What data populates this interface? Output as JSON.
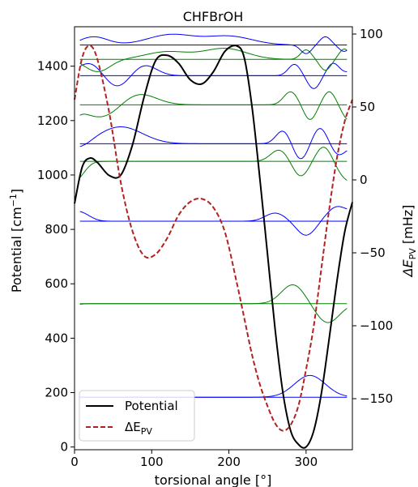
{
  "chart_data": {
    "type": "line",
    "title": "CHFBrOH",
    "xlabel": "torsional angle [°]",
    "ylabel_left": {
      "main": "Potential [cm",
      "sup": "−1",
      "tail": "]"
    },
    "ylabel_right": {
      "main": "ΔE",
      "sub": "PV",
      "tail": " [mHz]"
    },
    "ylabel_right_color": "#b22222",
    "xlim": [
      0,
      360
    ],
    "ylim_left": [
      -10,
      1545
    ],
    "ylim_right": [
      -185,
      105
    ],
    "x_ticks": [
      0,
      100,
      200,
      300
    ],
    "x_tick_labels": [
      "0",
      "100",
      "200",
      "300"
    ],
    "y_left_ticks": [
      0,
      200,
      400,
      600,
      800,
      1000,
      1200,
      1400
    ],
    "y_left_tick_labels": [
      "0",
      "200",
      "400",
      "600",
      "800",
      "1000",
      "1200",
      "1400"
    ],
    "y_right_ticks": [
      -150,
      -100,
      -50,
      0,
      50,
      100
    ],
    "y_right_tick_labels": [
      "−150",
      "−100",
      "−50",
      "0",
      "50",
      "100"
    ],
    "legend": {
      "placement": "lower-left",
      "entries": [
        "Potential",
        "ΔE_PV"
      ]
    },
    "legend_labels": {
      "potential": "Potential",
      "dE_main": "ΔE",
      "dE_sub": "PV"
    },
    "series": [
      {
        "name": "Potential",
        "axis": "left",
        "color": "#000000",
        "style": "solid",
        "x": [
          0,
          10,
          20,
          30,
          45,
          60,
          75,
          90,
          105,
          120,
          135,
          150,
          165,
          180,
          195,
          210,
          220,
          230,
          240,
          250,
          260,
          270,
          280,
          290,
          300,
          310,
          320,
          330,
          340,
          350,
          360
        ],
        "y": [
          895,
          1030,
          1062,
          1045,
          998,
          1000,
          1110,
          1285,
          1420,
          1440,
          1410,
          1350,
          1335,
          1380,
          1455,
          1475,
          1430,
          1250,
          990,
          710,
          430,
          200,
          60,
          10,
          0,
          60,
          200,
          400,
          610,
          790,
          900
        ]
      },
      {
        "name": "ΔE_PV",
        "axis": "right",
        "color": "#b22222",
        "style": "dashed",
        "x": [
          0,
          10,
          20,
          30,
          45,
          60,
          75,
          90,
          105,
          120,
          135,
          150,
          165,
          180,
          195,
          210,
          220,
          230,
          240,
          250,
          260,
          270,
          280,
          290,
          300,
          310,
          320,
          330,
          340,
          350,
          360
        ],
        "y": [
          55,
          84,
          92,
          82,
          46,
          -2,
          -35,
          -52,
          -51,
          -40,
          -24,
          -15,
          -13,
          -19,
          -36,
          -70,
          -95,
          -120,
          -140,
          -155,
          -167,
          -172,
          -168,
          -155,
          -130,
          -100,
          -60,
          -20,
          15,
          40,
          55
        ]
      }
    ],
    "wavefunctions": [
      {
        "level": 183,
        "color": "#0000ff",
        "peaks": [
          {
            "c": 305,
            "w": 20,
            "a": 80
          }
        ]
      },
      {
        "level": 527,
        "color": "#008000",
        "peaks": [
          {
            "c": 283,
            "w": 15,
            "a": 70
          },
          {
            "c": 328,
            "w": 15,
            "a": -70
          }
        ]
      },
      {
        "level": 830,
        "color": "#0000ff",
        "peaks": [
          {
            "c": 260,
            "w": 13,
            "a": 30
          },
          {
            "c": 300,
            "w": 12,
            "a": -52
          },
          {
            "c": 340,
            "w": 13,
            "a": 52
          },
          {
            "c": 8,
            "w": 12,
            "a": 30
          }
        ]
      },
      {
        "level": 1050,
        "color": "#008000",
        "peaks": [
          {
            "c": 265,
            "w": 11,
            "a": 42
          },
          {
            "c": 293,
            "w": 10,
            "a": -55
          },
          {
            "c": 323,
            "w": 10,
            "a": 55
          },
          {
            "c": 350,
            "w": 11,
            "a": -50
          },
          {
            "c": 5,
            "w": 10,
            "a": -45
          }
        ]
      },
      {
        "level": 1115,
        "color": "#0000ff",
        "peaks": [
          {
            "c": 60,
            "w": 28,
            "a": 62
          },
          {
            "c": 8,
            "w": 13,
            "a": -20
          },
          {
            "c": 270,
            "w": 9,
            "a": 48
          },
          {
            "c": 293,
            "w": 9,
            "a": -58
          },
          {
            "c": 318,
            "w": 9,
            "a": 58
          },
          {
            "c": 342,
            "w": 9,
            "a": -40
          }
        ]
      },
      {
        "level": 1258,
        "color": "#008000",
        "peaks": [
          {
            "c": 40,
            "w": 26,
            "a": -55
          },
          {
            "c": 78,
            "w": 24,
            "a": 52
          },
          {
            "c": 280,
            "w": 9,
            "a": 48
          },
          {
            "c": 305,
            "w": 8,
            "a": -55
          },
          {
            "c": 330,
            "w": 8,
            "a": 50
          },
          {
            "c": 355,
            "w": 8,
            "a": -45
          }
        ]
      },
      {
        "level": 1365,
        "color": "#0000ff",
        "peaks": [
          {
            "c": 20,
            "w": 16,
            "a": 48
          },
          {
            "c": 55,
            "w": 16,
            "a": -45
          },
          {
            "c": 90,
            "w": 16,
            "a": 40
          },
          {
            "c": 285,
            "w": 8,
            "a": 42
          },
          {
            "c": 310,
            "w": 8,
            "a": -48
          },
          {
            "c": 335,
            "w": 8,
            "a": 45
          }
        ]
      },
      {
        "level": 1425,
        "color": "#008000",
        "peaks": [
          {
            "c": 30,
            "w": 16,
            "a": -45
          },
          {
            "c": 120,
            "w": 28,
            "a": 28
          },
          {
            "c": 195,
            "w": 28,
            "a": 40
          },
          {
            "c": 300,
            "w": 7,
            "a": 35
          },
          {
            "c": 325,
            "w": 7,
            "a": -40
          },
          {
            "c": 350,
            "w": 7,
            "a": 40
          }
        ]
      },
      {
        "level": 1478,
        "color": "#0000ff",
        "peaks": [
          {
            "c": 25,
            "w": 18,
            "a": 30
          },
          {
            "c": 125,
            "w": 30,
            "a": 38
          },
          {
            "c": 200,
            "w": 30,
            "a": 32
          },
          {
            "c": 300,
            "w": 7,
            "a": -32
          },
          {
            "c": 325,
            "w": 7,
            "a": 30
          },
          {
            "c": 350,
            "w": 7,
            "a": -28
          }
        ]
      }
    ]
  }
}
